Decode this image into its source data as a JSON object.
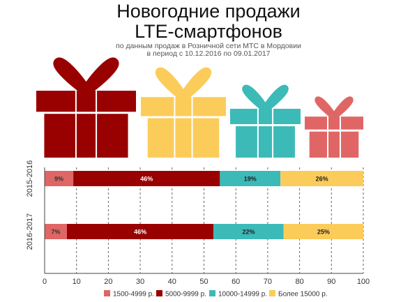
{
  "title": [
    "Новогодние продажи",
    "LTE-смартфонов"
  ],
  "subtitle": [
    "по данным продаж в Розничной сети МТС в Мордовии",
    "в период с 10.12.2016 по 09.01.2017"
  ],
  "colors": {
    "cat1": "#e06666",
    "cat2": "#990000",
    "cat3": "#3bbab8",
    "cat4": "#fccc5a",
    "axis": "#444444",
    "grid": "#666666"
  },
  "chart_data": {
    "type": "bar",
    "orientation": "horizontal",
    "stacked": true,
    "categories": [
      "2015-2016",
      "2016-2017"
    ],
    "series": [
      {
        "name": "1500-4999 р.",
        "values": [
          9,
          7
        ],
        "labels": [
          "9%",
          "7%"
        ]
      },
      {
        "name": "5000-9999 р.",
        "values": [
          46,
          46
        ],
        "labels": [
          "46%",
          "46%"
        ]
      },
      {
        "name": "10000-14999 р.",
        "values": [
          19,
          22
        ],
        "labels": [
          "19%",
          "22%"
        ]
      },
      {
        "name": "Более 15000 р.",
        "values": [
          26,
          25
        ],
        "labels": [
          "26%",
          "25%"
        ]
      }
    ],
    "xlim": [
      0,
      100
    ],
    "xticks": [
      "0",
      "10",
      "20",
      "30",
      "40",
      "50",
      "60",
      "70",
      "80",
      "90",
      "100"
    ],
    "grid": "dashed vertical",
    "legend": "bottom"
  },
  "decorations": {
    "gifts": [
      {
        "icon": "gift-icon",
        "color": "#990000"
      },
      {
        "icon": "gift-icon",
        "color": "#fccc5a"
      },
      {
        "icon": "gift-icon",
        "color": "#3bbab8"
      },
      {
        "icon": "gift-icon",
        "color": "#e06666"
      }
    ]
  }
}
